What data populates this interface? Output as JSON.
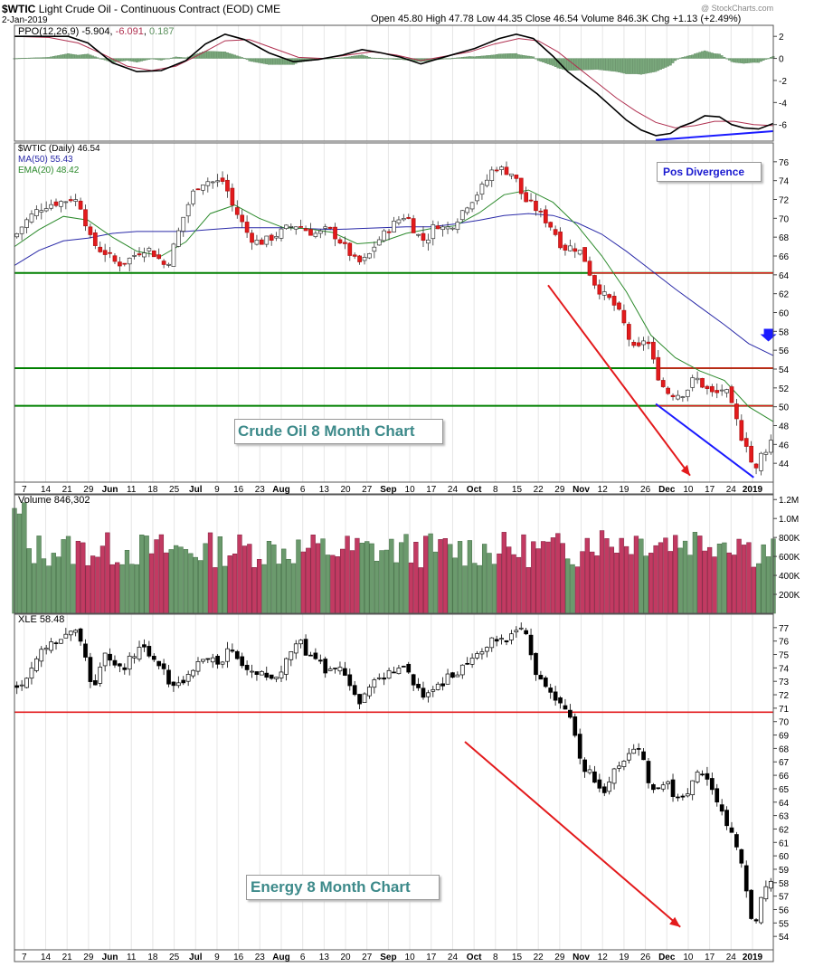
{
  "header": {
    "symbol": "$WTIC",
    "name": "Light Crude Oil - Continuous Contract (EOD)",
    "exchange": "CME",
    "date": "2-Jan-2019",
    "open_label": "Open",
    "open": "45.80",
    "high_label": "High",
    "high": "47.78",
    "low_label": "Low",
    "low": "44.35",
    "close_label": "Close",
    "close": "46.54",
    "volume_label": "Volume",
    "volume": "846.3K",
    "chg_label": "Chg",
    "chg": "+1.13 (+2.49%)",
    "watermark": "@ StockCharts.com"
  },
  "colors": {
    "up": "#5e9260",
    "down": "#cc2955",
    "green_line": "#008000",
    "red_line": "#e31a1c",
    "blue_line": "#1a1aff",
    "ma50": "#2a2aa8",
    "ema20": "#2c8a2c"
  },
  "chart_data": [
    {
      "type": "area",
      "panel": "ppo",
      "legend": {
        "label": "PPO(12,26,9)",
        "value1": "-5.904",
        "value2": "-6.091",
        "value3": "0.187"
      },
      "yticks": [
        "2",
        "0",
        "-2",
        "-4",
        "-6"
      ],
      "ylim": [
        -7.5,
        3
      ],
      "ppo": [
        [
          0,
          2
        ],
        [
          12,
          2
        ],
        [
          22,
          2
        ],
        [
          30,
          1.4
        ],
        [
          40,
          -0.4
        ],
        [
          50,
          -1.2
        ],
        [
          60,
          -1.1
        ],
        [
          70,
          -0.2
        ],
        [
          78,
          1.3
        ],
        [
          86,
          2.2
        ],
        [
          94,
          1.7
        ],
        [
          104,
          0.5
        ],
        [
          114,
          -0.3
        ],
        [
          124,
          -0.1
        ],
        [
          134,
          0.3
        ],
        [
          142,
          0.8
        ],
        [
          150,
          0.5
        ],
        [
          158,
          0.1
        ],
        [
          166,
          -0.5
        ],
        [
          172,
          -0.1
        ],
        [
          180,
          0.4
        ],
        [
          188,
          0.9
        ],
        [
          198,
          1.8
        ],
        [
          205,
          2.2
        ],
        [
          212,
          1.8
        ],
        [
          220,
          0.2
        ],
        [
          226,
          -1.2
        ],
        [
          232,
          -2.2
        ],
        [
          238,
          -3.2
        ],
        [
          244,
          -4.4
        ],
        [
          250,
          -5.6
        ],
        [
          256,
          -6.5
        ],
        [
          262,
          -7
        ],
        [
          268,
          -6.8
        ],
        [
          272,
          -6.2
        ],
        [
          277,
          -5.8
        ],
        [
          282,
          -5.2
        ],
        [
          288,
          -5.3
        ],
        [
          293,
          -6
        ],
        [
          298,
          -6.3
        ],
        [
          304,
          -6.4
        ],
        [
          310,
          -5.9
        ]
      ],
      "signal": [
        [
          0,
          2
        ],
        [
          14,
          1.9
        ],
        [
          26,
          1.4
        ],
        [
          36,
          0.4
        ],
        [
          46,
          -0.7
        ],
        [
          56,
          -1.1
        ],
        [
          66,
          -0.7
        ],
        [
          76,
          0.4
        ],
        [
          86,
          1.6
        ],
        [
          96,
          1.7
        ],
        [
          106,
          0.9
        ],
        [
          116,
          0.1
        ],
        [
          126,
          0
        ],
        [
          136,
          0.3
        ],
        [
          146,
          0.6
        ],
        [
          156,
          0.3
        ],
        [
          166,
          -0.2
        ],
        [
          176,
          0.2
        ],
        [
          186,
          0.6
        ],
        [
          196,
          1.3
        ],
        [
          206,
          1.8
        ],
        [
          214,
          1.6
        ],
        [
          222,
          0.6
        ],
        [
          230,
          -0.8
        ],
        [
          238,
          -2.2
        ],
        [
          246,
          -3.6
        ],
        [
          254,
          -4.8
        ],
        [
          262,
          -5.8
        ],
        [
          270,
          -6.3
        ],
        [
          278,
          -6.1
        ],
        [
          286,
          -5.7
        ],
        [
          294,
          -5.7
        ],
        [
          302,
          -6
        ],
        [
          310,
          -6.1
        ]
      ],
      "divergence_line": [
        [
          262,
          -7.4
        ],
        [
          310,
          -6.6
        ]
      ]
    },
    {
      "type": "line",
      "panel": "price",
      "legend": {
        "title": "$WTIC (Daily)",
        "title_value": "46.54",
        "ma50": "MA(50)",
        "ma50_value": "55.43",
        "ema20": "EMA(20)",
        "ema20_value": "48.42"
      },
      "yticks": [
        "76",
        "74",
        "72",
        "70",
        "68",
        "66",
        "64",
        "62",
        "60",
        "58",
        "56",
        "54",
        "52",
        "50",
        "48",
        "46",
        "44"
      ],
      "ylim": [
        42,
        78
      ],
      "price": [
        [
          0,
          68
        ],
        [
          4,
          69.5
        ],
        [
          8,
          70.6
        ],
        [
          12,
          71.3
        ],
        [
          16,
          71.6
        ],
        [
          20,
          71.8
        ],
        [
          24,
          72.2
        ],
        [
          28,
          71
        ],
        [
          30,
          68.2
        ],
        [
          34,
          66.8
        ],
        [
          38,
          66.2
        ],
        [
          42,
          65.1
        ],
        [
          46,
          65.5
        ],
        [
          50,
          66.3
        ],
        [
          54,
          66.9
        ],
        [
          58,
          66
        ],
        [
          62,
          64.8
        ],
        [
          64,
          66.2
        ],
        [
          66,
          67.8
        ],
        [
          70,
          70.9
        ],
        [
          74,
          73.3
        ],
        [
          78,
          74
        ],
        [
          82,
          73.8
        ],
        [
          86,
          74
        ],
        [
          88,
          71.8
        ],
        [
          92,
          70
        ],
        [
          96,
          68
        ],
        [
          100,
          67.4
        ],
        [
          104,
          67.8
        ],
        [
          108,
          68.4
        ],
        [
          112,
          69.1
        ],
        [
          116,
          69.3
        ],
        [
          120,
          68.6
        ],
        [
          124,
          68.3
        ],
        [
          128,
          68.9
        ],
        [
          132,
          67.9
        ],
        [
          136,
          66.6
        ],
        [
          140,
          65.2
        ],
        [
          144,
          65.7
        ],
        [
          148,
          67.5
        ],
        [
          152,
          68.6
        ],
        [
          156,
          69.7
        ],
        [
          160,
          70.4
        ],
        [
          164,
          68.4
        ],
        [
          168,
          67.5
        ],
        [
          172,
          69.5
        ],
        [
          176,
          68.8
        ],
        [
          180,
          69.6
        ],
        [
          184,
          71.2
        ],
        [
          188,
          72.3
        ],
        [
          192,
          73.6
        ],
        [
          196,
          75.5
        ],
        [
          200,
          75.1
        ],
        [
          204,
          74.7
        ],
        [
          208,
          72
        ],
        [
          212,
          71.3
        ],
        [
          216,
          70.1
        ],
        [
          220,
          68.9
        ],
        [
          224,
          66.8
        ],
        [
          228,
          67
        ],
        [
          232,
          66.3
        ],
        [
          236,
          63.5
        ],
        [
          240,
          62
        ],
        [
          244,
          61.2
        ],
        [
          248,
          59.5
        ],
        [
          252,
          56.5
        ],
        [
          254,
          55.7
        ],
        [
          258,
          57.6
        ],
        [
          262,
          53.8
        ],
        [
          266,
          51.6
        ],
        [
          270,
          51.3
        ],
        [
          274,
          51.5
        ],
        [
          278,
          53.2
        ],
        [
          282,
          52
        ],
        [
          286,
          51.2
        ],
        [
          290,
          52.1
        ],
        [
          294,
          49.3
        ],
        [
          297,
          46.8
        ],
        [
          300,
          45.8
        ],
        [
          302,
          42.5
        ],
        [
          305,
          44.9
        ],
        [
          308,
          45.8
        ],
        [
          310,
          47
        ]
      ],
      "ma50": [
        [
          0,
          65
        ],
        [
          10,
          66.6
        ],
        [
          20,
          67.6
        ],
        [
          30,
          67.9
        ],
        [
          40,
          68.4
        ],
        [
          50,
          68.6
        ],
        [
          60,
          68.6
        ],
        [
          70,
          68.6
        ],
        [
          80,
          68.8
        ],
        [
          90,
          69
        ],
        [
          100,
          69
        ],
        [
          110,
          69
        ],
        [
          120,
          68.9
        ],
        [
          130,
          68.8
        ],
        [
          140,
          68.9
        ],
        [
          150,
          69
        ],
        [
          160,
          69.1
        ],
        [
          170,
          69.1
        ],
        [
          180,
          69.4
        ],
        [
          190,
          69.8
        ],
        [
          200,
          70.3
        ],
        [
          210,
          70.5
        ],
        [
          220,
          70.3
        ],
        [
          230,
          69.5
        ],
        [
          240,
          68.3
        ],
        [
          250,
          66.5
        ],
        [
          260,
          64.5
        ],
        [
          270,
          62.5
        ],
        [
          280,
          60.6
        ],
        [
          290,
          58.7
        ],
        [
          300,
          56.7
        ],
        [
          310,
          55.43
        ]
      ],
      "ema20": [
        [
          0,
          67
        ],
        [
          10,
          68.8
        ],
        [
          20,
          70.2
        ],
        [
          30,
          69.8
        ],
        [
          40,
          68
        ],
        [
          50,
          66.5
        ],
        [
          60,
          66
        ],
        [
          70,
          67.5
        ],
        [
          80,
          70.5
        ],
        [
          90,
          71.4
        ],
        [
          100,
          70
        ],
        [
          110,
          69
        ],
        [
          120,
          68.9
        ],
        [
          130,
          68.5
        ],
        [
          140,
          67.3
        ],
        [
          150,
          67.5
        ],
        [
          160,
          68.4
        ],
        [
          170,
          68.9
        ],
        [
          180,
          69.2
        ],
        [
          190,
          70.6
        ],
        [
          200,
          72.5
        ],
        [
          210,
          73
        ],
        [
          220,
          71.7
        ],
        [
          230,
          69.2
        ],
        [
          240,
          66
        ],
        [
          250,
          62.2
        ],
        [
          260,
          57.6
        ],
        [
          270,
          55.2
        ],
        [
          280,
          53.8
        ],
        [
          290,
          52.8
        ],
        [
          300,
          50
        ],
        [
          310,
          48.42
        ]
      ],
      "hlines": [
        {
          "y": 64.2,
          "color": "green"
        },
        {
          "y": 54.1,
          "color": "green"
        },
        {
          "y": 50.1,
          "color": "green"
        }
      ],
      "red_levels": [
        {
          "x0": 236,
          "x1": 310,
          "y": 64.2
        },
        {
          "x0": 262,
          "x1": 310,
          "y": 54.1
        },
        {
          "x0": 262,
          "x1": 310,
          "y": 50.1
        }
      ],
      "red_arrow": [
        [
          218,
          62.9
        ],
        [
          276,
          42.7
        ]
      ],
      "blue_channel": [
        [
          262,
          50.3
        ],
        [
          302,
          42.5
        ]
      ],
      "annotation_pos": "Pos Divergence",
      "annotation_title": "Crude Oil 8 Month Chart"
    },
    {
      "type": "bar",
      "panel": "volume",
      "legend": {
        "label": "Volume",
        "value": "846,302"
      },
      "yticks": [
        "1.2M",
        "1.0M",
        "800K",
        "600K",
        "400K",
        "200K"
      ],
      "ylim": [
        0,
        1250000
      ]
    },
    {
      "type": "line",
      "panel": "xle",
      "legend": {
        "label": "XLE",
        "value": "58.48"
      },
      "yticks": [
        "77",
        "76",
        "75",
        "74",
        "73",
        "72",
        "71",
        "70",
        "69",
        "68",
        "67",
        "66",
        "65",
        "64",
        "63",
        "62",
        "61",
        "60",
        "59",
        "58",
        "57",
        "56",
        "55",
        "54"
      ],
      "ylim": [
        53,
        78
      ],
      "price": [
        [
          0,
          72.5
        ],
        [
          4,
          73
        ],
        [
          8,
          74.5
        ],
        [
          12,
          75.4
        ],
        [
          16,
          76
        ],
        [
          20,
          76.3
        ],
        [
          24,
          76.8
        ],
        [
          28,
          76.1
        ],
        [
          30,
          74
        ],
        [
          32,
          72
        ],
        [
          36,
          75
        ],
        [
          40,
          74.3
        ],
        [
          44,
          73.7
        ],
        [
          48,
          74.9
        ],
        [
          52,
          75.4
        ],
        [
          56,
          74.9
        ],
        [
          60,
          74.1
        ],
        [
          64,
          72.6
        ],
        [
          68,
          72.9
        ],
        [
          72,
          73.8
        ],
        [
          76,
          74.5
        ],
        [
          80,
          74.8
        ],
        [
          84,
          73.9
        ],
        [
          88,
          75.6
        ],
        [
          92,
          74.1
        ],
        [
          96,
          73.7
        ],
        [
          100,
          73.8
        ],
        [
          104,
          73.2
        ],
        [
          108,
          73.5
        ],
        [
          112,
          75.1
        ],
        [
          116,
          76.1
        ],
        [
          120,
          74.8
        ],
        [
          124,
          74.6
        ],
        [
          128,
          73.6
        ],
        [
          132,
          74
        ],
        [
          136,
          73.2
        ],
        [
          140,
          71.3
        ],
        [
          142,
          71.5
        ],
        [
          144,
          72.2
        ],
        [
          148,
          73.1
        ],
        [
          152,
          73.5
        ],
        [
          156,
          73.9
        ],
        [
          160,
          73.9
        ],
        [
          164,
          72.7
        ],
        [
          168,
          71.7
        ],
        [
          172,
          72.4
        ],
        [
          176,
          73.1
        ],
        [
          180,
          73.7
        ],
        [
          184,
          74
        ],
        [
          188,
          75
        ],
        [
          192,
          75.6
        ],
        [
          196,
          76.2
        ],
        [
          200,
          76.1
        ],
        [
          204,
          76.6
        ],
        [
          208,
          77
        ],
        [
          212,
          74
        ],
        [
          216,
          72.5
        ],
        [
          220,
          71.9
        ],
        [
          224,
          71.2
        ],
        [
          228,
          70
        ],
        [
          232,
          66.4
        ],
        [
          236,
          66.1
        ],
        [
          240,
          64.6
        ],
        [
          244,
          66.1
        ],
        [
          248,
          67
        ],
        [
          252,
          67.8
        ],
        [
          256,
          68.3
        ],
        [
          258,
          65.9
        ],
        [
          262,
          64.7
        ],
        [
          266,
          65.8
        ],
        [
          270,
          64.1
        ],
        [
          274,
          64.2
        ],
        [
          278,
          66.4
        ],
        [
          282,
          66.2
        ],
        [
          286,
          64.2
        ],
        [
          290,
          62.8
        ],
        [
          294,
          61.3
        ],
        [
          298,
          58.5
        ],
        [
          302,
          54.2
        ],
        [
          306,
          57.5
        ],
        [
          310,
          58.5
        ]
      ],
      "hline": {
        "y": 70.7
      },
      "red_arrow": [
        [
          184,
          68.5
        ],
        [
          272,
          54.7
        ]
      ],
      "annotation_title": "Energy 8 Month Chart"
    }
  ],
  "xaxis": {
    "labels": [
      "7",
      "14",
      "21",
      "29",
      "Jun",
      "11",
      "18",
      "25",
      "Jul",
      "9",
      "16",
      "23",
      "Aug",
      "6",
      "13",
      "20",
      "27",
      "Sep",
      "10",
      "17",
      "24",
      "Oct",
      "8",
      "15",
      "22",
      "29",
      "Nov",
      "12",
      "19",
      "26",
      "Dec",
      "10",
      "17",
      "24",
      "2019"
    ]
  }
}
